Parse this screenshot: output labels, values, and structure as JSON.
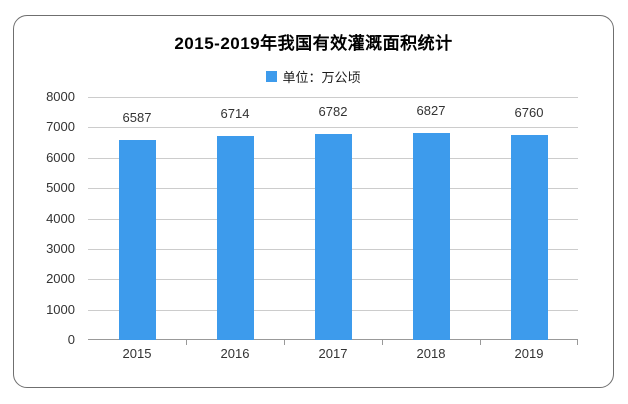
{
  "chart_data": {
    "type": "bar",
    "title": "2015-2019年我国有效灌溉面积统计",
    "legend": "单位：万公顷",
    "legend_position": "top",
    "categories": [
      "2015",
      "2016",
      "2017",
      "2018",
      "2019"
    ],
    "values": [
      6587,
      6714,
      6782,
      6827,
      6760
    ],
    "value_labels_shown": true,
    "ylim": [
      0,
      8000
    ],
    "ytick_step": 1000,
    "yticks": [
      0,
      1000,
      2000,
      3000,
      4000,
      5000,
      6000,
      7000,
      8000
    ],
    "grid": "horizontal",
    "bar_color": "#3d9bec",
    "gridline_color": "#cccccc",
    "axis_color": "#999999",
    "text_color": "#333333"
  }
}
